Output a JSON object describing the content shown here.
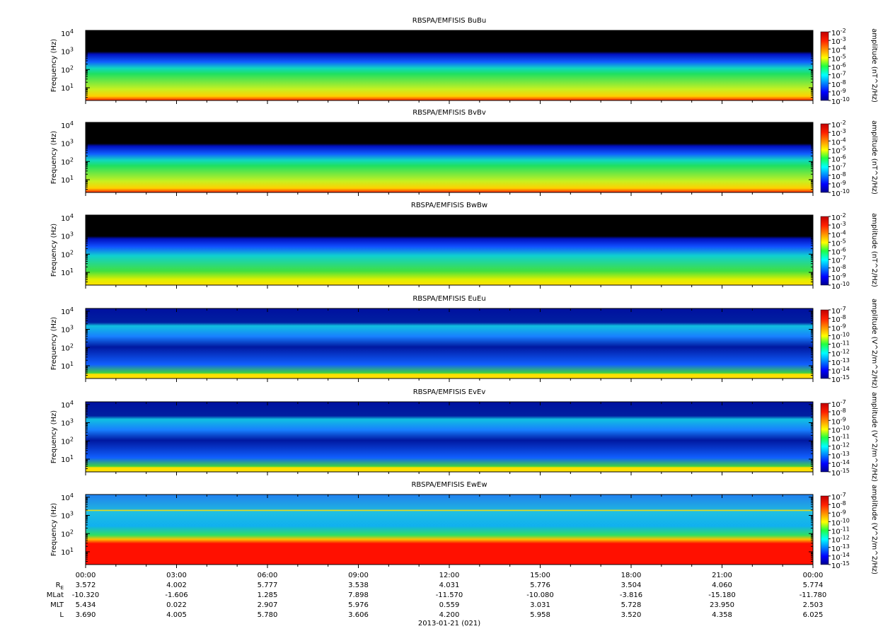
{
  "chart_data": [
    {
      "type": "spectrogram",
      "title": "RBSPA/EMFISIS  BuBu",
      "ylabel": "Frequency (Hz)",
      "ylog": true,
      "ylim": [
        2,
        14000
      ],
      "yticks": [
        {
          "value": 10,
          "label": "10",
          "exponent": "1"
        },
        {
          "value": 100,
          "label": "10",
          "exponent": "2"
        },
        {
          "value": 1000,
          "label": "10",
          "exponent": "3"
        },
        {
          "value": 10000,
          "label": "10",
          "exponent": "4"
        }
      ],
      "colorbar_label": "amplitude (nT^2/Hz)",
      "clim": [
        1e-10,
        0.01
      ],
      "cticks": [
        {
          "value": 0.01,
          "label": "10",
          "exponent": "-2"
        },
        {
          "value": 0.001,
          "label": "10",
          "exponent": "-3"
        },
        {
          "value": 0.0001,
          "label": "10",
          "exponent": "-4"
        },
        {
          "value": 1e-05,
          "label": "10",
          "exponent": "-5"
        },
        {
          "value": 1e-06,
          "label": "10",
          "exponent": "-6"
        },
        {
          "value": 1e-07,
          "label": "10",
          "exponent": "-7"
        },
        {
          "value": 1e-08,
          "label": "10",
          "exponent": "-8"
        },
        {
          "value": 1e-09,
          "label": "10",
          "exponent": "-9"
        },
        {
          "value": 1e-10,
          "label": "10",
          "exponent": "-10"
        }
      ]
    },
    {
      "type": "spectrogram",
      "title": "RBSPA/EMFISIS  BvBv",
      "ylabel": "Frequency (Hz)",
      "ylog": true,
      "ylim": [
        2,
        14000
      ],
      "yticks": [
        {
          "value": 10,
          "label": "10",
          "exponent": "1"
        },
        {
          "value": 100,
          "label": "10",
          "exponent": "2"
        },
        {
          "value": 1000,
          "label": "10",
          "exponent": "3"
        },
        {
          "value": 10000,
          "label": "10",
          "exponent": "4"
        }
      ],
      "colorbar_label": "amplitude (nT^2/Hz)",
      "clim": [
        1e-10,
        0.01
      ],
      "cticks": [
        {
          "value": 0.01,
          "label": "10",
          "exponent": "-2"
        },
        {
          "value": 0.001,
          "label": "10",
          "exponent": "-3"
        },
        {
          "value": 0.0001,
          "label": "10",
          "exponent": "-4"
        },
        {
          "value": 1e-05,
          "label": "10",
          "exponent": "-5"
        },
        {
          "value": 1e-06,
          "label": "10",
          "exponent": "-6"
        },
        {
          "value": 1e-07,
          "label": "10",
          "exponent": "-7"
        },
        {
          "value": 1e-08,
          "label": "10",
          "exponent": "-8"
        },
        {
          "value": 1e-09,
          "label": "10",
          "exponent": "-9"
        },
        {
          "value": 1e-10,
          "label": "10",
          "exponent": "-10"
        }
      ]
    },
    {
      "type": "spectrogram",
      "title": "RBSPA/EMFISIS  BwBw",
      "ylabel": "Frequency (Hz)",
      "ylog": true,
      "ylim": [
        2,
        14000
      ],
      "yticks": [
        {
          "value": 10,
          "label": "10",
          "exponent": "1"
        },
        {
          "value": 100,
          "label": "10",
          "exponent": "2"
        },
        {
          "value": 1000,
          "label": "10",
          "exponent": "3"
        },
        {
          "value": 10000,
          "label": "10",
          "exponent": "4"
        }
      ],
      "colorbar_label": "amplitude (nT^2/Hz)",
      "clim": [
        1e-10,
        0.01
      ],
      "cticks": [
        {
          "value": 0.01,
          "label": "10",
          "exponent": "-2"
        },
        {
          "value": 0.001,
          "label": "10",
          "exponent": "-3"
        },
        {
          "value": 0.0001,
          "label": "10",
          "exponent": "-4"
        },
        {
          "value": 1e-05,
          "label": "10",
          "exponent": "-5"
        },
        {
          "value": 1e-06,
          "label": "10",
          "exponent": "-6"
        },
        {
          "value": 1e-07,
          "label": "10",
          "exponent": "-7"
        },
        {
          "value": 1e-08,
          "label": "10",
          "exponent": "-8"
        },
        {
          "value": 1e-09,
          "label": "10",
          "exponent": "-9"
        },
        {
          "value": 1e-10,
          "label": "10",
          "exponent": "-10"
        }
      ]
    },
    {
      "type": "spectrogram",
      "title": "RBSPA/EMFISIS  EuEu",
      "ylabel": "Frequency (Hz)",
      "ylog": true,
      "ylim": [
        2,
        14000
      ],
      "yticks": [
        {
          "value": 10,
          "label": "10",
          "exponent": "1"
        },
        {
          "value": 100,
          "label": "10",
          "exponent": "2"
        },
        {
          "value": 1000,
          "label": "10",
          "exponent": "3"
        },
        {
          "value": 10000,
          "label": "10",
          "exponent": "4"
        }
      ],
      "colorbar_label": "amplitude (V^2/m^2/Hz)",
      "clim": [
        1e-15,
        1e-07
      ],
      "cticks": [
        {
          "value": 1e-07,
          "label": "10",
          "exponent": "-7"
        },
        {
          "value": 1e-08,
          "label": "10",
          "exponent": "-8"
        },
        {
          "value": 1e-09,
          "label": "10",
          "exponent": "-9"
        },
        {
          "value": 1e-10,
          "label": "10",
          "exponent": "-10"
        },
        {
          "value": 1e-11,
          "label": "10",
          "exponent": "-11"
        },
        {
          "value": 1e-12,
          "label": "10",
          "exponent": "-12"
        },
        {
          "value": 1e-13,
          "label": "10",
          "exponent": "-13"
        },
        {
          "value": 1e-14,
          "label": "10",
          "exponent": "-14"
        },
        {
          "value": 1e-15,
          "label": "10",
          "exponent": "-15"
        }
      ]
    },
    {
      "type": "spectrogram",
      "title": "RBSPA/EMFISIS  EvEv",
      "ylabel": "Frequency (Hz)",
      "ylog": true,
      "ylim": [
        2,
        14000
      ],
      "yticks": [
        {
          "value": 10,
          "label": "10",
          "exponent": "1"
        },
        {
          "value": 100,
          "label": "10",
          "exponent": "2"
        },
        {
          "value": 1000,
          "label": "10",
          "exponent": "3"
        },
        {
          "value": 10000,
          "label": "10",
          "exponent": "4"
        }
      ],
      "colorbar_label": "amplitude (V^2/m^2/Hz)",
      "clim": [
        1e-15,
        1e-07
      ],
      "cticks": [
        {
          "value": 1e-07,
          "label": "10",
          "exponent": "-7"
        },
        {
          "value": 1e-08,
          "label": "10",
          "exponent": "-8"
        },
        {
          "value": 1e-09,
          "label": "10",
          "exponent": "-9"
        },
        {
          "value": 1e-10,
          "label": "10",
          "exponent": "-10"
        },
        {
          "value": 1e-11,
          "label": "10",
          "exponent": "-11"
        },
        {
          "value": 1e-12,
          "label": "10",
          "exponent": "-12"
        },
        {
          "value": 1e-13,
          "label": "10",
          "exponent": "-13"
        },
        {
          "value": 1e-14,
          "label": "10",
          "exponent": "-14"
        },
        {
          "value": 1e-15,
          "label": "10",
          "exponent": "-15"
        }
      ]
    },
    {
      "type": "spectrogram",
      "title": "RBSPA/EMFISIS  EwEw",
      "ylabel": "Frequency (Hz)",
      "ylog": true,
      "ylim": [
        2,
        14000
      ],
      "yticks": [
        {
          "value": 10,
          "label": "10",
          "exponent": "1"
        },
        {
          "value": 100,
          "label": "10",
          "exponent": "2"
        },
        {
          "value": 1000,
          "label": "10",
          "exponent": "3"
        },
        {
          "value": 10000,
          "label": "10",
          "exponent": "4"
        }
      ],
      "colorbar_label": "amplitude (V^2/m^2/Hz)",
      "clim": [
        1e-15,
        1e-07
      ],
      "cticks": [
        {
          "value": 1e-07,
          "label": "10",
          "exponent": "-7"
        },
        {
          "value": 1e-08,
          "label": "10",
          "exponent": "-8"
        },
        {
          "value": 1e-09,
          "label": "10",
          "exponent": "-9"
        },
        {
          "value": 1e-10,
          "label": "10",
          "exponent": "-10"
        },
        {
          "value": 1e-11,
          "label": "10",
          "exponent": "-11"
        },
        {
          "value": 1e-12,
          "label": "10",
          "exponent": "-12"
        },
        {
          "value": 1e-13,
          "label": "10",
          "exponent": "-13"
        },
        {
          "value": 1e-14,
          "label": "10",
          "exponent": "-14"
        },
        {
          "value": 1e-15,
          "label": "10",
          "exponent": "-15"
        }
      ]
    }
  ],
  "x_axis": {
    "xlim": [
      0,
      24
    ],
    "xticks": [
      {
        "value": 0,
        "label": "00:00"
      },
      {
        "value": 3,
        "label": "03:00"
      },
      {
        "value": 6,
        "label": "06:00"
      },
      {
        "value": 9,
        "label": "09:00"
      },
      {
        "value": 12,
        "label": "12:00"
      },
      {
        "value": 15,
        "label": "15:00"
      },
      {
        "value": 18,
        "label": "18:00"
      },
      {
        "value": 21,
        "label": "21:00"
      },
      {
        "value": 24,
        "label": "00:00"
      }
    ],
    "date": "2013-01-21 (021)"
  },
  "ephemeris": [
    {
      "label": "R",
      "subscript": "E",
      "values": [
        "3.572",
        "4.002",
        "5.777",
        "3.538",
        "4.031",
        "5.776",
        "3.504",
        "4.060",
        "5.774"
      ]
    },
    {
      "label": "MLat",
      "values": [
        "-10.320",
        "-1.606",
        "1.285",
        "7.898",
        "-11.570",
        "-10.080",
        "-3.816",
        "-15.180",
        "-11.780"
      ]
    },
    {
      "label": "MLT",
      "values": [
        "5.434",
        "0.022",
        "2.907",
        "5.976",
        "0.559",
        "3.031",
        "5.728",
        "23.950",
        "2.503"
      ]
    },
    {
      "label": "L",
      "values": [
        "3.690",
        "4.005",
        "5.780",
        "3.606",
        "4.200",
        "5.958",
        "3.520",
        "4.358",
        "6.025"
      ]
    }
  ]
}
